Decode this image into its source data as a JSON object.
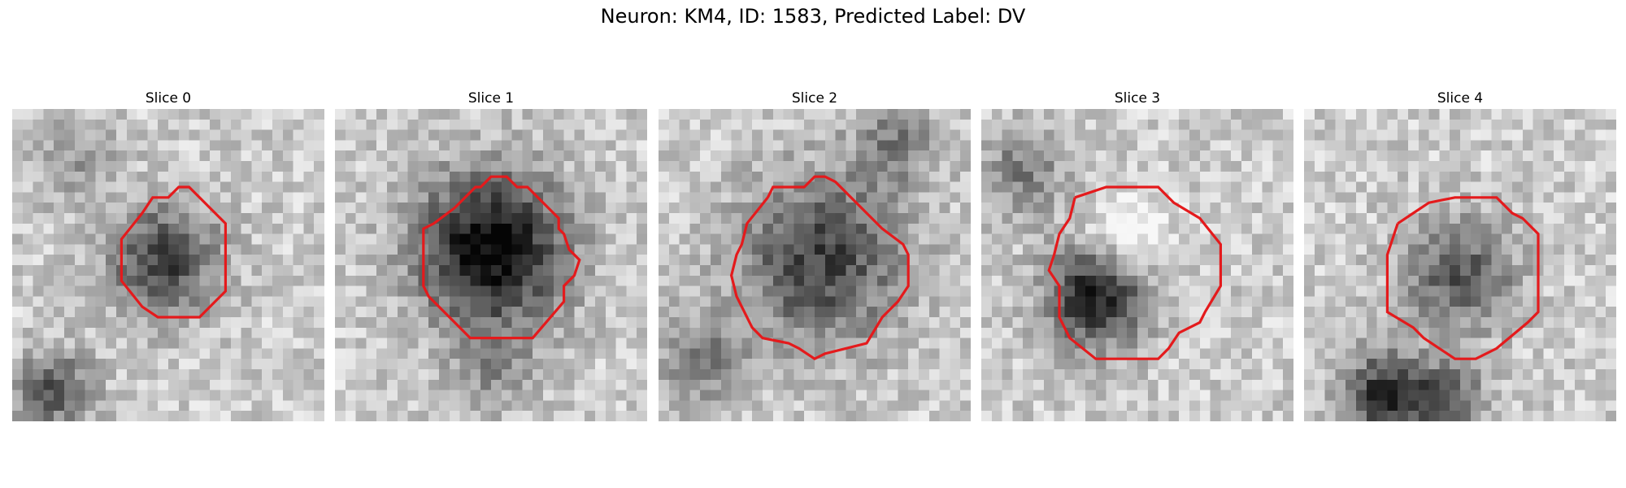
{
  "figure": {
    "title": "Neuron: KM4, ID: 1583, Predicted Label: DV",
    "contour_color": "#e41a1c"
  },
  "panels": [
    {
      "title": "Slice 0"
    },
    {
      "title": "Slice 1"
    },
    {
      "title": "Slice 2"
    },
    {
      "title": "Slice 3"
    },
    {
      "title": "Slice 4"
    }
  ]
}
